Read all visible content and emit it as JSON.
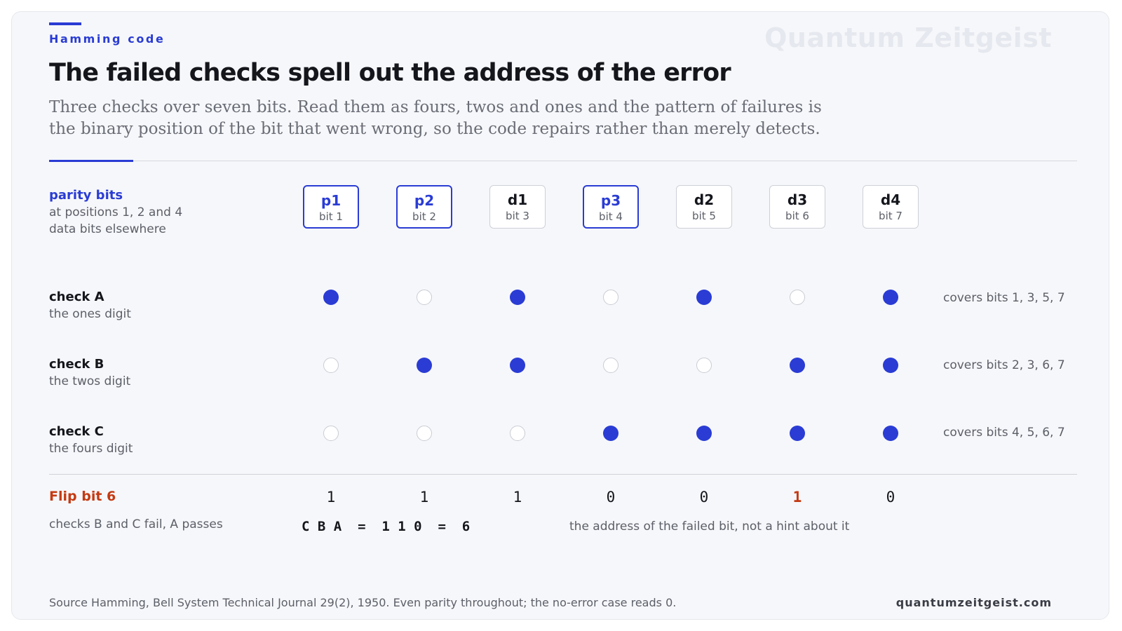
{
  "header": {
    "eyebrow": "Hamming code",
    "watermark": "Quantum Zeitgeist",
    "title": "The failed checks spell out the address of the error",
    "subtitle_line1": "Three checks over seven bits. Read them as fours, twos and ones and the pattern of failures is",
    "subtitle_line2": "the binary position of the bit that went wrong, so the code repairs rather than merely detects."
  },
  "legend": {
    "title": "parity bits",
    "line1": "at positions 1, 2 and 4",
    "line2": "data bits elsewhere"
  },
  "bits": [
    {
      "name": "p1",
      "pos": "bit 1",
      "parity": true
    },
    {
      "name": "p2",
      "pos": "bit 2",
      "parity": true
    },
    {
      "name": "d1",
      "pos": "bit 3",
      "parity": false
    },
    {
      "name": "p3",
      "pos": "bit 4",
      "parity": true
    },
    {
      "name": "d2",
      "pos": "bit 5",
      "parity": false
    },
    {
      "name": "d3",
      "pos": "bit 6",
      "parity": false
    },
    {
      "name": "d4",
      "pos": "bit 7",
      "parity": false
    }
  ],
  "checks": [
    {
      "title": "check A",
      "sub": "the ones digit",
      "covers": "covers bits 1, 3, 5, 7",
      "pattern": [
        1,
        0,
        1,
        0,
        1,
        0,
        1
      ]
    },
    {
      "title": "check B",
      "sub": "the twos digit",
      "covers": "covers bits 2, 3, 6, 7",
      "pattern": [
        0,
        1,
        1,
        0,
        0,
        1,
        1
      ]
    },
    {
      "title": "check C",
      "sub": "the fours digit",
      "covers": "covers bits 4, 5, 6, 7",
      "pattern": [
        0,
        0,
        0,
        1,
        1,
        1,
        1
      ]
    }
  ],
  "flip": {
    "title": "Flip bit 6",
    "sub": "checks B and C fail, A passes",
    "values": [
      "1",
      "1",
      "1",
      "0",
      "0",
      "1",
      "0"
    ],
    "flipped_index": 5,
    "syndrome": "C B A  =  1 1 0  =  6",
    "address_note": "the address of the failed bit, not a hint about it"
  },
  "footer": {
    "source": "Source  Hamming, Bell System Technical Journal 29(2), 1950. Even parity throughout; the no-error case reads 0.",
    "site": "quantumzeitgeist.com"
  },
  "colors": {
    "accent": "#2a3cd4",
    "flip": "#c43a12"
  }
}
